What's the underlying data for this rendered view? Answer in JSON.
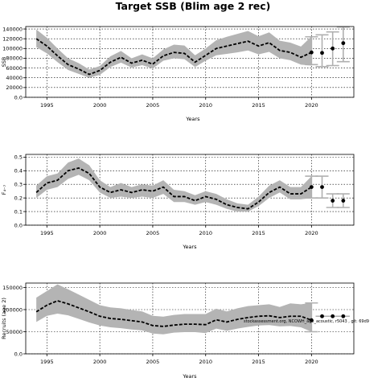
{
  "title": "Target SSB (Blim age 2 rec)",
  "watermark": "stockassessment.org, NCOWH_age_acoustic, r5043 , git: 69d9",
  "colors": {
    "band": "#b4b4b4",
    "line": "#000000",
    "whisker": "#b0b0b0",
    "grid": "#000000"
  },
  "chart_data": [
    {
      "type": "line",
      "title": "",
      "xlabel": "Years",
      "ylabel": "SSB",
      "xlim": [
        1993,
        2024
      ],
      "ylim": [
        0,
        145000
      ],
      "xticks": [
        1995,
        2000,
        2005,
        2010,
        2015,
        2020
      ],
      "yticks": [
        0,
        20000,
        40000,
        60000,
        80000,
        100000,
        120000,
        140000
      ],
      "grid": true,
      "x": [
        1994,
        1995,
        1996,
        1997,
        1998,
        1999,
        2000,
        2001,
        2002,
        2003,
        2004,
        2005,
        2006,
        2007,
        2008,
        2009,
        2010,
        2011,
        2012,
        2013,
        2014,
        2015,
        2016,
        2017,
        2018,
        2019,
        2020
      ],
      "estimate": [
        120000,
        105000,
        85000,
        67000,
        58000,
        47000,
        55000,
        72000,
        82000,
        70000,
        76000,
        68000,
        85000,
        92000,
        90000,
        72000,
        86000,
        100000,
        105000,
        110000,
        115000,
        105000,
        112000,
        96000,
        92000,
        82000,
        92000
      ],
      "lower": [
        103000,
        90000,
        72000,
        56000,
        48000,
        40000,
        46000,
        62000,
        71000,
        61000,
        66000,
        59000,
        75000,
        80000,
        78000,
        62000,
        75000,
        86000,
        89000,
        92000,
        96000,
        88000,
        93000,
        80000,
        76000,
        67000,
        65000
      ],
      "upper": [
        139000,
        122000,
        100000,
        80000,
        70000,
        57000,
        64000,
        84000,
        95000,
        80000,
        88000,
        80000,
        98000,
        108000,
        106000,
        86000,
        100000,
        117000,
        124000,
        130000,
        136000,
        125000,
        133000,
        116000,
        112000,
        104000,
        125000
      ],
      "forecast_x": [
        2020,
        2021,
        2022,
        2023
      ],
      "forecast": [
        92000,
        91000,
        100000,
        111000
      ],
      "forecast_lower": [
        67000,
        63000,
        65000,
        73000
      ],
      "forecast_upper": [
        124000,
        128000,
        134000,
        144000
      ]
    },
    {
      "type": "line",
      "title": "",
      "xlabel": "Years",
      "ylabel": "F₄₋₇",
      "xlim": [
        1993,
        2024
      ],
      "ylim": [
        0,
        0.52
      ],
      "xticks": [
        1995,
        2000,
        2005,
        2010,
        2015,
        2020
      ],
      "yticks": [
        0.0,
        0.1,
        0.2,
        0.3,
        0.4,
        0.5
      ],
      "grid": true,
      "x": [
        1994,
        1995,
        1996,
        1997,
        1998,
        1999,
        2000,
        2001,
        2002,
        2003,
        2004,
        2005,
        2006,
        2007,
        2008,
        2009,
        2010,
        2011,
        2012,
        2013,
        2014,
        2015,
        2016,
        2017,
        2018,
        2019,
        2020
      ],
      "estimate": [
        0.24,
        0.31,
        0.33,
        0.4,
        0.42,
        0.38,
        0.28,
        0.24,
        0.26,
        0.24,
        0.26,
        0.25,
        0.28,
        0.21,
        0.21,
        0.18,
        0.21,
        0.19,
        0.15,
        0.13,
        0.12,
        0.17,
        0.24,
        0.28,
        0.23,
        0.23,
        0.28
      ],
      "lower": [
        0.2,
        0.26,
        0.28,
        0.34,
        0.37,
        0.33,
        0.24,
        0.2,
        0.21,
        0.2,
        0.21,
        0.2,
        0.23,
        0.17,
        0.17,
        0.15,
        0.17,
        0.15,
        0.12,
        0.1,
        0.1,
        0.14,
        0.2,
        0.24,
        0.19,
        0.19,
        0.2
      ],
      "upper": [
        0.29,
        0.36,
        0.38,
        0.46,
        0.49,
        0.44,
        0.33,
        0.28,
        0.31,
        0.28,
        0.3,
        0.29,
        0.33,
        0.26,
        0.25,
        0.22,
        0.25,
        0.23,
        0.19,
        0.16,
        0.15,
        0.21,
        0.29,
        0.33,
        0.28,
        0.28,
        0.36
      ],
      "forecast_x": [
        2020,
        2021,
        2022,
        2023
      ],
      "forecast": [
        0.28,
        0.28,
        0.18,
        0.18
      ],
      "forecast_lower": [
        0.2,
        0.2,
        0.13,
        0.13
      ],
      "forecast_upper": [
        0.36,
        0.36,
        0.23,
        0.23
      ]
    },
    {
      "type": "line",
      "title": "",
      "xlabel": "Years",
      "ylabel": "Recruits (age 2)",
      "xlim": [
        1993,
        2024
      ],
      "ylim": [
        0,
        160000
      ],
      "xticks": [
        1995,
        2000,
        2005,
        2010,
        2015,
        2020
      ],
      "yticks": [
        0,
        50000,
        100000,
        150000
      ],
      "grid": true,
      "x": [
        1994,
        1995,
        1996,
        1997,
        1998,
        1999,
        2000,
        2001,
        2002,
        2003,
        2004,
        2005,
        2006,
        2007,
        2008,
        2009,
        2010,
        2011,
        2012,
        2013,
        2014,
        2015,
        2016,
        2017,
        2018,
        2019,
        2020
      ],
      "estimate": [
        95000,
        110000,
        120000,
        113000,
        104000,
        95000,
        85000,
        80000,
        78000,
        75000,
        72000,
        64000,
        62000,
        65000,
        67000,
        67000,
        66000,
        77000,
        72000,
        78000,
        82000,
        85000,
        86000,
        82000,
        85000,
        85000,
        76000
      ],
      "lower": [
        72000,
        86000,
        91000,
        87000,
        79000,
        71000,
        64000,
        60000,
        58000,
        55000,
        53000,
        46000,
        44000,
        48000,
        49000,
        49000,
        47000,
        57000,
        52000,
        57000,
        61000,
        64000,
        65000,
        62000,
        63000,
        60000,
        50000
      ],
      "upper": [
        127000,
        142000,
        157000,
        146000,
        134000,
        122000,
        110000,
        105000,
        103000,
        99000,
        96000,
        86000,
        84000,
        88000,
        90000,
        90000,
        90000,
        102000,
        96000,
        103000,
        108000,
        110000,
        112000,
        106000,
        114000,
        112000,
        115000
      ],
      "forecast_x": [
        2020,
        2021,
        2022,
        2023
      ],
      "forecast": [
        76000,
        85000,
        85000,
        85000
      ],
      "forecast_lower": [
        50000,
        85000,
        85000,
        85000
      ],
      "forecast_upper": [
        115000,
        85000,
        85000,
        85000
      ]
    }
  ]
}
